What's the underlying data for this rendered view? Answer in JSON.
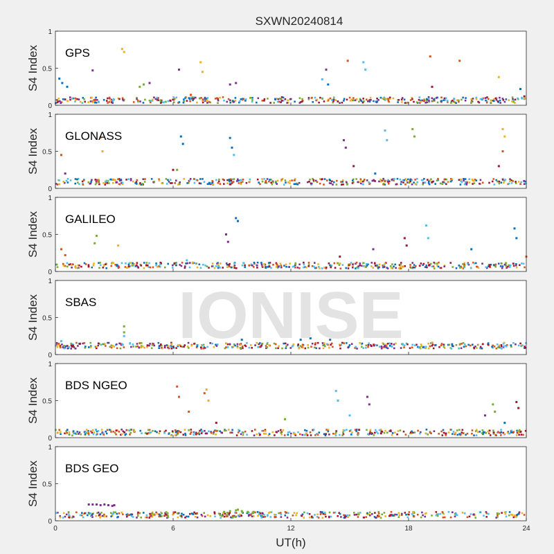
{
  "figure": {
    "title": "SXWN20240814",
    "watermark": "IONISE",
    "xlabel": "UT(h)",
    "x_ticks": [
      "0",
      "6",
      "12",
      "18",
      "24"
    ],
    "ylabel": "S4 Index",
    "y_ticks": [
      "0",
      "0.5",
      "1"
    ]
  },
  "colors": {
    "background": "#f0f0f0",
    "axes_bg": "#ffffff",
    "series_palette": [
      "#0072bd",
      "#d95319",
      "#edb120",
      "#7e2f8e",
      "#77ac30",
      "#4dbeee",
      "#a2142f"
    ]
  },
  "chart_data": [
    {
      "type": "scatter",
      "panel_label": "GPS",
      "xlim": [
        0,
        24
      ],
      "ylim": [
        0,
        1
      ],
      "baseline": 0.07,
      "series": [
        {
          "color": "#0072bd",
          "values": [
            [
              0.2,
              0.36
            ],
            [
              0.35,
              0.3
            ],
            [
              0.6,
              0.25
            ],
            [
              13.9,
              0.28
            ],
            [
              23.7,
              0.22
            ]
          ]
        },
        {
          "color": "#d95319",
          "values": [
            [
              14.9,
              0.6
            ],
            [
              19.1,
              0.66
            ],
            [
              20.6,
              0.6
            ],
            [
              6.9,
              0.14
            ]
          ]
        },
        {
          "color": "#edb120",
          "values": [
            [
              3.4,
              0.76
            ],
            [
              3.5,
              0.72
            ],
            [
              7.4,
              0.58
            ],
            [
              7.5,
              0.45
            ],
            [
              22.6,
              0.38
            ]
          ]
        },
        {
          "color": "#7e2f8e",
          "values": [
            [
              1.9,
              0.47
            ],
            [
              6.3,
              0.48
            ],
            [
              4.8,
              0.3
            ],
            [
              8.9,
              0.28
            ],
            [
              9.2,
              0.3
            ],
            [
              13.8,
              0.48
            ]
          ]
        },
        {
          "color": "#77ac30",
          "values": [
            [
              4.3,
              0.25
            ],
            [
              4.5,
              0.28
            ]
          ]
        },
        {
          "color": "#4dbeee",
          "values": [
            [
              15.7,
              0.58
            ],
            [
              15.8,
              0.48
            ],
            [
              13.6,
              0.35
            ]
          ]
        },
        {
          "color": "#a2142f",
          "values": [
            [
              19.2,
              0.25
            ],
            [
              23.9,
              0.12
            ]
          ]
        }
      ]
    },
    {
      "type": "scatter",
      "panel_label": "GLONASS",
      "xlim": [
        0,
        24
      ],
      "ylim": [
        0,
        1
      ],
      "baseline": 0.09,
      "series": [
        {
          "color": "#0072bd",
          "values": [
            [
              6.4,
              0.7
            ],
            [
              6.5,
              0.6
            ],
            [
              8.9,
              0.68
            ],
            [
              9.0,
              0.55
            ],
            [
              16.3,
              0.2
            ]
          ]
        },
        {
          "color": "#d95319",
          "values": [
            [
              0.3,
              0.45
            ],
            [
              22.8,
              0.5
            ]
          ]
        },
        {
          "color": "#edb120",
          "values": [
            [
              2.3,
              0.68
            ],
            [
              2.4,
              0.5
            ],
            [
              22.8,
              0.8
            ],
            [
              22.9,
              0.7
            ]
          ]
        },
        {
          "color": "#7e2f8e",
          "values": [
            [
              14.7,
              0.65
            ],
            [
              14.8,
              0.55
            ],
            [
              0.5,
              0.2
            ]
          ]
        },
        {
          "color": "#77ac30",
          "values": [
            [
              18.2,
              0.8
            ],
            [
              18.3,
              0.7
            ],
            [
              6.2,
              0.25
            ]
          ]
        },
        {
          "color": "#4dbeee",
          "values": [
            [
              16.8,
              0.78
            ],
            [
              16.9,
              0.65
            ],
            [
              9.1,
              0.45
            ]
          ]
        },
        {
          "color": "#a2142f",
          "values": [
            [
              15.2,
              0.3
            ],
            [
              6.0,
              0.25
            ],
            [
              22.6,
              0.3
            ]
          ]
        }
      ]
    },
    {
      "type": "scatter",
      "panel_label": "GALILEO",
      "xlim": [
        0,
        24
      ],
      "ylim": [
        0,
        1
      ],
      "baseline": 0.08,
      "series": [
        {
          "color": "#0072bd",
          "values": [
            [
              9.2,
              0.72
            ],
            [
              9.3,
              0.68
            ],
            [
              23.4,
              0.58
            ],
            [
              23.5,
              0.45
            ],
            [
              21.2,
              0.3
            ]
          ]
        },
        {
          "color": "#d95319",
          "values": [
            [
              0.3,
              0.3
            ],
            [
              0.5,
              0.22
            ],
            [
              24.0,
              0.2
            ]
          ]
        },
        {
          "color": "#edb120",
          "values": [
            [
              3.2,
              0.35
            ],
            [
              7.0,
              0.12
            ]
          ]
        },
        {
          "color": "#7e2f8e",
          "values": [
            [
              8.7,
              0.5
            ],
            [
              8.8,
              0.4
            ],
            [
              16.2,
              0.3
            ]
          ]
        },
        {
          "color": "#77ac30",
          "values": [
            [
              2.1,
              0.48
            ],
            [
              2.0,
              0.38
            ]
          ]
        },
        {
          "color": "#4dbeee",
          "values": [
            [
              18.9,
              0.62
            ],
            [
              19.0,
              0.45
            ],
            [
              6.7,
              0.15
            ]
          ]
        },
        {
          "color": "#a2142f",
          "values": [
            [
              17.8,
              0.45
            ],
            [
              17.9,
              0.35
            ],
            [
              14.5,
              0.2
            ]
          ]
        }
      ]
    },
    {
      "type": "scatter",
      "panel_label": "SBAS",
      "xlim": [
        0,
        24
      ],
      "ylim": [
        0,
        1
      ],
      "baseline": 0.12,
      "series": [
        {
          "color": "#0072bd",
          "values": [
            [
              12.5,
              0.2
            ],
            [
              13.0,
              0.22
            ],
            [
              14.0,
              0.2
            ],
            [
              9.5,
              0.2
            ]
          ]
        },
        {
          "color": "#77ac30",
          "values": [
            [
              3.5,
              0.38
            ],
            [
              3.5,
              0.3
            ]
          ]
        },
        {
          "color": "#4dbeee",
          "values": [
            [
              3.5,
              0.25
            ],
            [
              0.3,
              0.18
            ]
          ]
        }
      ]
    },
    {
      "type": "scatter",
      "panel_label": "BDS NGEO",
      "xlim": [
        0,
        24
      ],
      "ylim": [
        0,
        1
      ],
      "baseline": 0.07,
      "series": [
        {
          "color": "#0072bd",
          "values": [
            [
              22.9,
              0.2
            ]
          ]
        },
        {
          "color": "#d95319",
          "values": [
            [
              6.2,
              0.69
            ],
            [
              6.3,
              0.55
            ],
            [
              7.6,
              0.6
            ],
            [
              6.8,
              0.35
            ]
          ]
        },
        {
          "color": "#edb120",
          "values": [
            [
              7.7,
              0.65
            ],
            [
              7.8,
              0.5
            ]
          ]
        },
        {
          "color": "#7e2f8e",
          "values": [
            [
              15.9,
              0.55
            ],
            [
              16.0,
              0.45
            ],
            [
              21.9,
              0.3
            ]
          ]
        },
        {
          "color": "#77ac30",
          "values": [
            [
              22.3,
              0.45
            ],
            [
              22.4,
              0.35
            ],
            [
              11.7,
              0.25
            ]
          ]
        },
        {
          "color": "#4dbeee",
          "values": [
            [
              14.3,
              0.63
            ],
            [
              14.4,
              0.5
            ],
            [
              15.0,
              0.3
            ]
          ]
        },
        {
          "color": "#a2142f",
          "values": [
            [
              23.5,
              0.48
            ],
            [
              23.6,
              0.4
            ],
            [
              8.2,
              0.2
            ]
          ]
        }
      ]
    },
    {
      "type": "scatter",
      "panel_label": "BDS GEO",
      "xlim": [
        0,
        24
      ],
      "ylim": [
        0,
        1
      ],
      "baseline": 0.08,
      "series": [
        {
          "color": "#7e2f8e",
          "values": [
            [
              1.7,
              0.22
            ],
            [
              1.9,
              0.22
            ],
            [
              2.1,
              0.22
            ],
            [
              2.3,
              0.21
            ],
            [
              2.5,
              0.22
            ],
            [
              2.7,
              0.21
            ],
            [
              2.9,
              0.2
            ],
            [
              3.0,
              0.21
            ]
          ]
        },
        {
          "color": "#77ac30",
          "values": [
            [
              8.6,
              0.12
            ],
            [
              8.9,
              0.13
            ],
            [
              9.2,
              0.14
            ],
            [
              9.5,
              0.13
            ],
            [
              9.8,
              0.12
            ],
            [
              10.1,
              0.12
            ],
            [
              9.3,
              0.15
            ]
          ]
        }
      ]
    }
  ]
}
